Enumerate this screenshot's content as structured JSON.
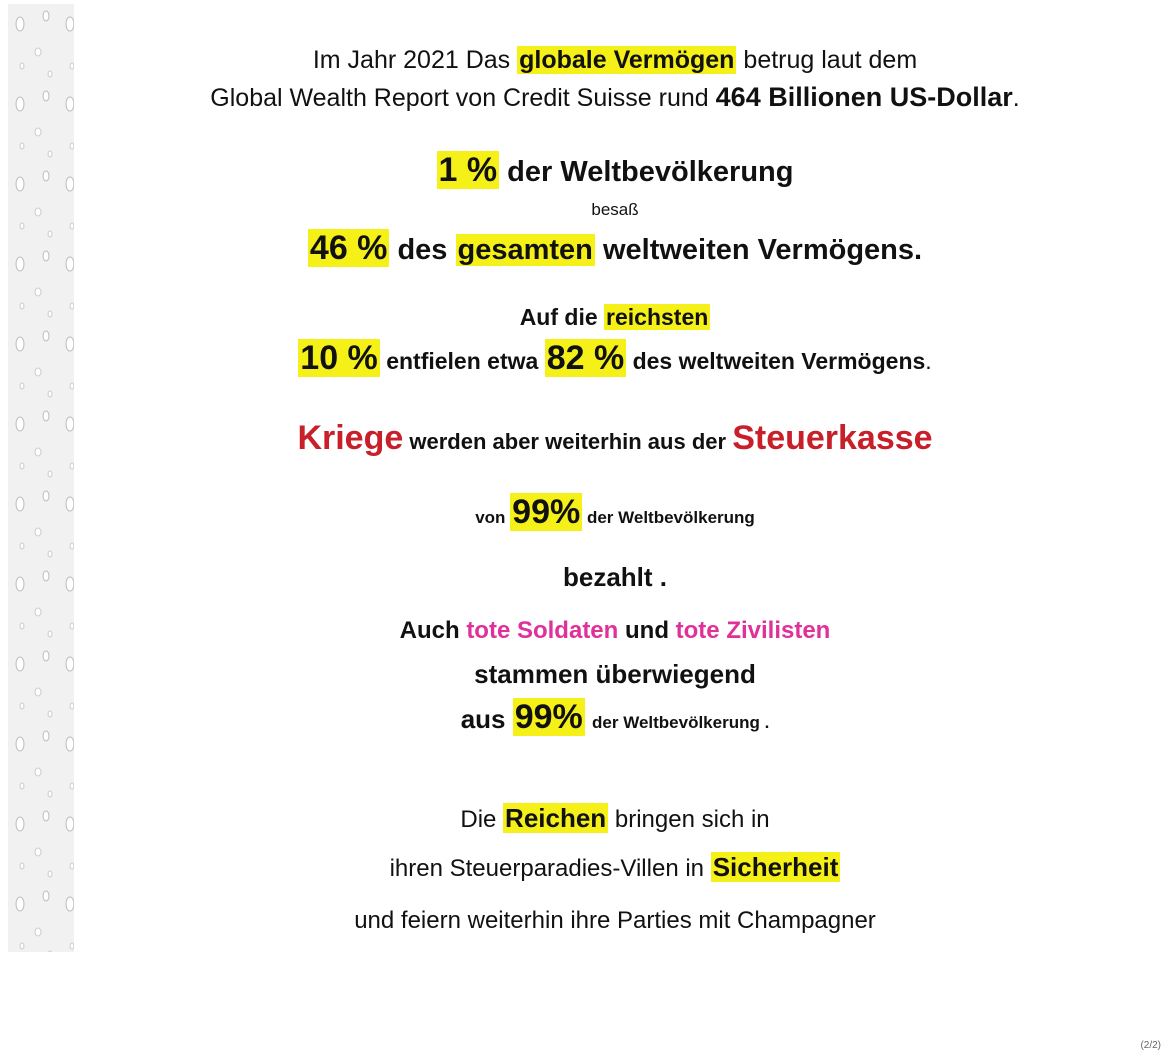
{
  "lines": [
    [
      "Im Jahr 2021 Das",
      "globale Vermögen",
      "betrug laut dem"
    ],
    [
      "Global Wealth Report von Credit Suisse rund",
      "464 Billionen US-Dollar",
      "."
    ],
    [
      "1 %",
      "der Weltbevölkerung"
    ],
    [
      "besaß"
    ],
    [
      "46 %",
      "des",
      "gesamten",
      "weltweiten Vermögens."
    ],
    [
      "Auf die",
      "reichsten"
    ],
    [
      "10 %",
      "entfielen etwa",
      "82 %",
      "des weltweiten Vermögens",
      "."
    ],
    [
      "Kriege",
      "werden aber weiterhin aus der",
      "Steuerkasse"
    ],
    [
      "von",
      "99%",
      "der Weltbevölkerung"
    ],
    [
      "bezahlt ."
    ],
    [
      "Auch",
      "tote Soldaten",
      "und",
      "tote Zivilisten"
    ],
    [
      "stammen überwiegend"
    ],
    [
      "aus",
      "99%",
      "der Weltbevölkerung ."
    ],
    [
      "Die",
      "Reichen",
      "bringen sich in"
    ],
    [
      "ihren Steuerparadies-Villen in",
      "Sicherheit"
    ],
    [
      "und feiern weiterhin ihre Parties mit Champagner"
    ]
  ],
  "footer": "(2/2)"
}
